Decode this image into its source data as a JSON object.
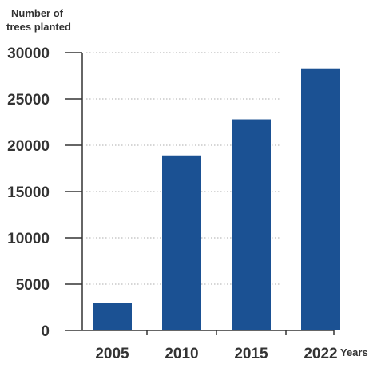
{
  "chart_data": {
    "type": "bar",
    "ylabel_lines": [
      "Number of",
      "trees planted"
    ],
    "xlabel": "Years",
    "categories": [
      "2005",
      "2010",
      "2015",
      "2022"
    ],
    "values": [
      3000,
      18900,
      22800,
      28300
    ],
    "ylim": [
      0,
      30000
    ],
    "yticks": [
      "0",
      "5000",
      "10000",
      "15000",
      "20000",
      "25000",
      "30000"
    ],
    "grid": true,
    "bar_color": "#1b5193",
    "grid_color": "#c8c8c8",
    "axis_color": "#333333"
  }
}
